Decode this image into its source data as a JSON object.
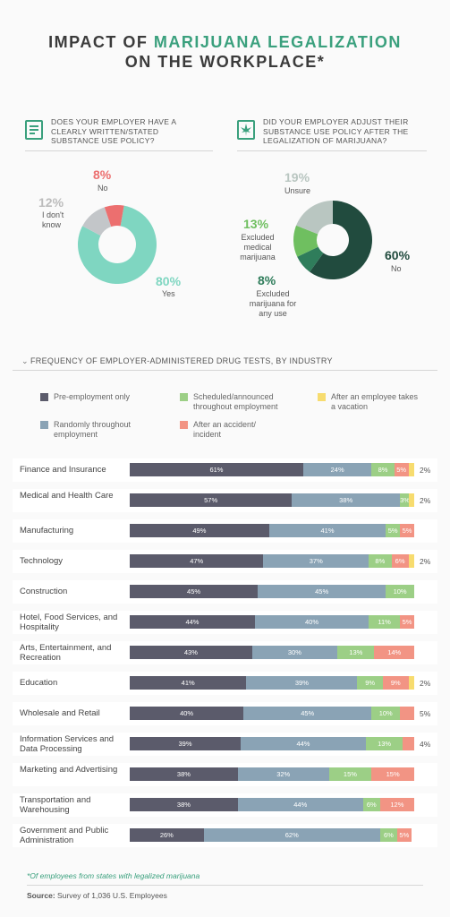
{
  "title": {
    "line1_a": "IMPACT OF ",
    "line1_b": "MARIJUANA LEGALIZATION",
    "line2": "ON THE WORKPLACE*"
  },
  "colors": {
    "accent": "#3aa07d",
    "pre": "#5b5b6b",
    "random": "#8aa3b5",
    "scheduled": "#9ccf86",
    "accident": "#f29484",
    "vacation": "#f7dc6f",
    "teal": "#7fd6c1",
    "gray": "#c3c6c9",
    "red": "#ec6f6f",
    "dark": "#214b3e",
    "mid": "#2f7d5b",
    "green": "#6fbf60",
    "light": "#b9c6c1"
  },
  "icons": {
    "q1": "policy-document-icon",
    "q2": "cannabis-leaf-icon"
  },
  "q1": {
    "question": "Does your employer have a clearly written/stated substance use policy?",
    "slices": [
      {
        "pct": "80%",
        "label": "Yes",
        "value": 80,
        "color": "#7fd6c1"
      },
      {
        "pct": "12%",
        "label": "I don't know",
        "value": 12,
        "color": "#c3c6c9"
      },
      {
        "pct": "8%",
        "label": "No",
        "value": 8,
        "color": "#ec6f6f"
      }
    ]
  },
  "q2": {
    "question": "Did your employer adjust their substance use policy after the legalization of marijuana?",
    "slices": [
      {
        "pct": "60%",
        "label": "No",
        "value": 60,
        "color": "#214b3e"
      },
      {
        "pct": "8%",
        "label": "Excluded marijuana for any use",
        "value": 8,
        "color": "#2f7d5b"
      },
      {
        "pct": "13%",
        "label": "Excluded medical marijuana",
        "value": 13,
        "color": "#6fbf60"
      },
      {
        "pct": "19%",
        "label": "Unsure",
        "value": 19,
        "color": "#b9c6c1"
      }
    ]
  },
  "section_title": "Frequency of employer-administered drug tests, by industry",
  "legend": [
    {
      "label": "Pre-employment only",
      "color": "#5b5b6b"
    },
    {
      "label": "Scheduled/announced throughout employment",
      "color": "#9ccf86"
    },
    {
      "label": "After an employee takes a vacation",
      "color": "#f7dc6f"
    },
    {
      "label": "Randomly throughout employment",
      "color": "#8aa3b5"
    },
    {
      "label": "After an accident/ incident",
      "color": "#f29484"
    }
  ],
  "chart_data": {
    "type": "bar",
    "orientation": "horizontal-stacked",
    "series": [
      {
        "name": "Pre-employment only",
        "color": "#5b5b6b"
      },
      {
        "name": "Randomly throughout employment",
        "color": "#8aa3b5"
      },
      {
        "name": "Scheduled/announced throughout employment",
        "color": "#9ccf86"
      },
      {
        "name": "After an accident/ incident",
        "color": "#f29484"
      },
      {
        "name": "After an employee takes a vacation",
        "color": "#f7dc6f"
      }
    ],
    "rows": [
      {
        "industry": "Finance and Insurance",
        "values": [
          61,
          24,
          8,
          5,
          2
        ],
        "labels": [
          "61%",
          "24%",
          "8%",
          "5%",
          ""
        ],
        "outside": "2%"
      },
      {
        "industry": "Medical and Health Care",
        "values": [
          57,
          38,
          3,
          0,
          2
        ],
        "labels": [
          "57%",
          "38%",
          "3%",
          "",
          ""
        ],
        "outside": "2%"
      },
      {
        "industry": "Manufacturing",
        "values": [
          49,
          41,
          5,
          5,
          0
        ],
        "labels": [
          "49%",
          "41%",
          "5%",
          "5%",
          ""
        ],
        "outside": ""
      },
      {
        "industry": "Technology",
        "values": [
          47,
          37,
          8,
          6,
          2
        ],
        "labels": [
          "47%",
          "37%",
          "8%",
          "6%",
          ""
        ],
        "outside": "2%"
      },
      {
        "industry": "Construction",
        "values": [
          45,
          45,
          10,
          0,
          0
        ],
        "labels": [
          "45%",
          "45%",
          "10%",
          "",
          ""
        ],
        "outside": ""
      },
      {
        "industry": "Hotel, Food Services, and Hospitality",
        "values": [
          44,
          40,
          11,
          5,
          0
        ],
        "labels": [
          "44%",
          "40%",
          "11%",
          "5%",
          ""
        ],
        "outside": ""
      },
      {
        "industry": "Arts, Entertainment, and Recreation",
        "values": [
          43,
          30,
          13,
          14,
          0
        ],
        "labels": [
          "43%",
          "30%",
          "13%",
          "14%",
          ""
        ],
        "outside": ""
      },
      {
        "industry": "Education",
        "values": [
          41,
          39,
          9,
          9,
          2
        ],
        "labels": [
          "41%",
          "39%",
          "9%",
          "9%",
          ""
        ],
        "outside": "2%"
      },
      {
        "industry": "Wholesale and Retail",
        "values": [
          40,
          45,
          10,
          5,
          0
        ],
        "labels": [
          "40%",
          "45%",
          "10%",
          "",
          ""
        ],
        "outside": "5%"
      },
      {
        "industry": "Information Services and Data Processing",
        "values": [
          39,
          44,
          13,
          4,
          0
        ],
        "labels": [
          "39%",
          "44%",
          "13%",
          "",
          ""
        ],
        "outside": "4%"
      },
      {
        "industry": "Marketing and Advertising",
        "values": [
          38,
          32,
          15,
          15,
          0
        ],
        "labels": [
          "38%",
          "32%",
          "15%",
          "15%",
          ""
        ],
        "outside": ""
      },
      {
        "industry": "Transportation and Warehousing",
        "values": [
          38,
          44,
          6,
          12,
          0
        ],
        "labels": [
          "38%",
          "44%",
          "6%",
          "12%",
          ""
        ],
        "outside": ""
      },
      {
        "industry": "Government and Public Administration",
        "values": [
          26,
          62,
          6,
          5,
          0
        ],
        "labels": [
          "26%",
          "62%",
          "6%",
          "5%",
          ""
        ],
        "outside": ""
      }
    ],
    "xlim": [
      0,
      100
    ]
  },
  "footnote": "*Of employees from states with legalized marijuana",
  "source_label": "Source:",
  "source_text": " Survey of 1,036 U.S. Employees"
}
